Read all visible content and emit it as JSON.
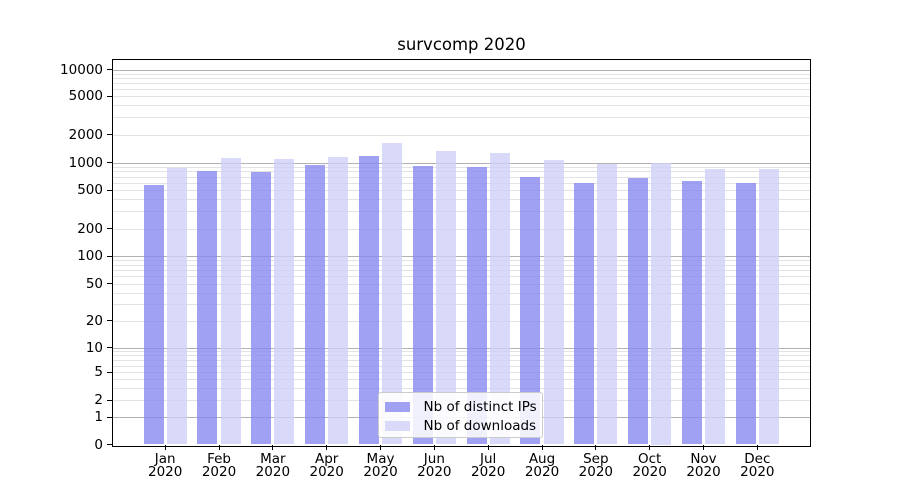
{
  "chart_data": {
    "type": "bar",
    "title": "survcomp 2020",
    "categories": [
      "Jan",
      "Feb",
      "Mar",
      "Apr",
      "May",
      "Jun",
      "Jul",
      "Aug",
      "Sep",
      "Oct",
      "Nov",
      "Dec"
    ],
    "year_label": "2020",
    "series": [
      {
        "name": "Nb of distinct IPs",
        "color": "#a1a1f3",
        "fill": "rgba(134,134,240,0.78)",
        "values": [
          570,
          815,
          795,
          940,
          1170,
          925,
          900,
          700,
          600,
          680,
          630,
          600
        ]
      },
      {
        "name": "Nb of downloads",
        "color": "#d9d9fa",
        "fill": "rgba(206,206,249,0.78)",
        "values": [
          870,
          1120,
          1100,
          1155,
          1610,
          1330,
          1275,
          1070,
          955,
          1000,
          845,
          850
        ]
      }
    ],
    "xlabel": "",
    "ylabel": "",
    "yscale": "symlog",
    "ylim": [
      0,
      12800
    ],
    "yticks": [
      0,
      1,
      2,
      5,
      10,
      20,
      50,
      100,
      200,
      500,
      1000,
      2000,
      5000,
      10000
    ],
    "grid": true,
    "grid_major_values": [
      1,
      10,
      100,
      1000,
      10000
    ],
    "grid_minor_values": [
      2,
      3,
      4,
      5,
      6,
      7,
      8,
      9,
      20,
      30,
      40,
      50,
      60,
      70,
      80,
      90,
      200,
      300,
      400,
      500,
      600,
      700,
      800,
      900,
      2000,
      3000,
      4000,
      5000,
      6000,
      7000,
      8000,
      9000
    ],
    "legend_position": "lower center",
    "colors": {
      "background": "#ffffff",
      "grid_major": "#b2b2b2",
      "grid_minor": "#e3e3e3",
      "axis": "#000000",
      "legend_border": "#cccccc"
    }
  }
}
